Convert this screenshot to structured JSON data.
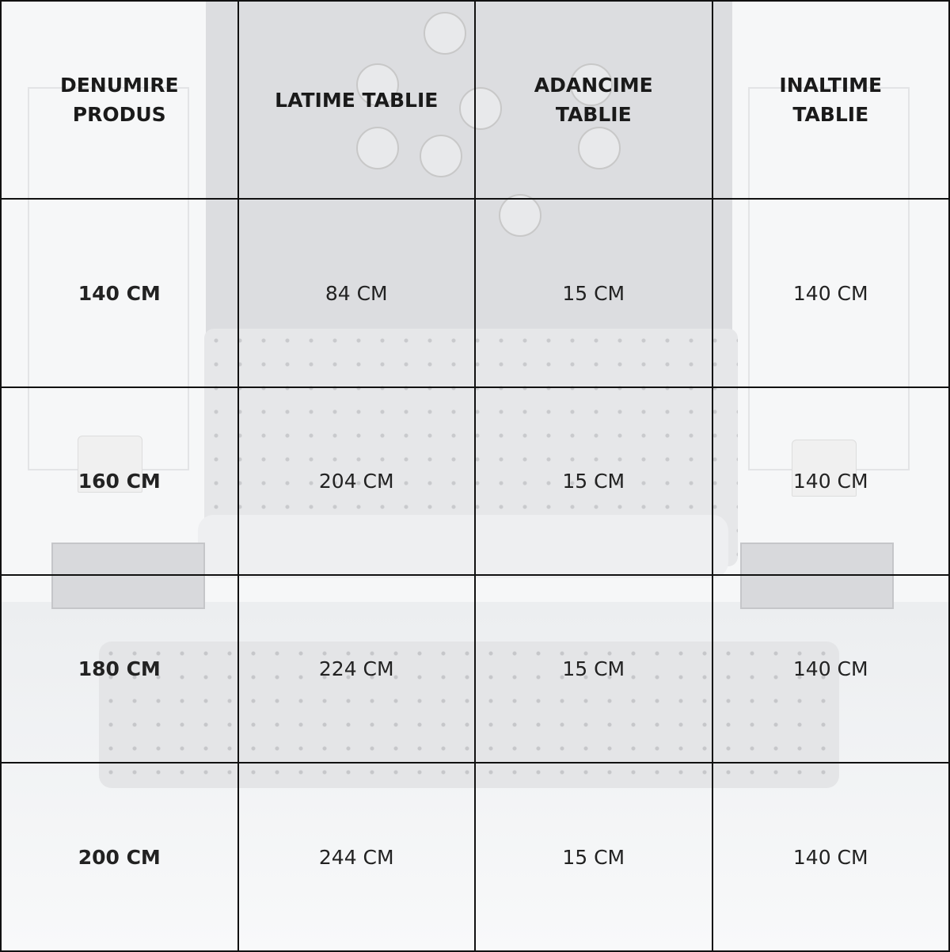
{
  "table": {
    "headers": [
      "DENUMIRE\nPRODUS",
      "LATIME TABLIE",
      "ADANCIME\nTABLIE",
      "INALTIME\nTABLIE"
    ],
    "header_lines": [
      [
        "DENUMIRE",
        "PRODUS"
      ],
      [
        "LATIME TABLIE"
      ],
      [
        "ADANCIME",
        "TABLIE"
      ],
      [
        "INALTIME",
        "TABLIE"
      ]
    ],
    "rows": [
      [
        "140 CM",
        "84 CM",
        "15 CM",
        "140 CM"
      ],
      [
        "160 CM",
        "204 CM",
        "15 CM",
        "140 CM"
      ],
      [
        "180 CM",
        "224 CM",
        "15 CM",
        "140 CM"
      ],
      [
        "200 CM",
        "244 CM",
        "15 CM",
        "140 CM"
      ]
    ]
  }
}
